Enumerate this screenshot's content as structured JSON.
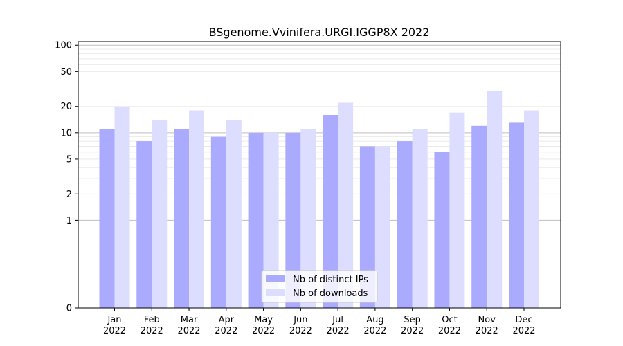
{
  "chart_data": {
    "type": "bar",
    "title": "BSgenome.Vvinifera.URGI.IGGP8X 2022",
    "xlabel": "",
    "ylabel": "",
    "y_scale": "symlog",
    "ylim": [
      0,
      110
    ],
    "yticks": [
      0,
      1,
      2,
      5,
      10,
      20,
      50,
      100
    ],
    "ytick_labels": [
      "0",
      "1",
      "2",
      "5",
      "10",
      "20",
      "50",
      "100"
    ],
    "categories": [
      [
        "Jan",
        "2022"
      ],
      [
        "Feb",
        "2022"
      ],
      [
        "Mar",
        "2022"
      ],
      [
        "Apr",
        "2022"
      ],
      [
        "May",
        "2022"
      ],
      [
        "Jun",
        "2022"
      ],
      [
        "Jul",
        "2022"
      ],
      [
        "Aug",
        "2022"
      ],
      [
        "Sep",
        "2022"
      ],
      [
        "Oct",
        "2022"
      ],
      [
        "Nov",
        "2022"
      ],
      [
        "Dec",
        "2022"
      ]
    ],
    "series": [
      {
        "name": "Nb of distinct IPs",
        "color": "#aaaaff",
        "values": [
          11,
          8,
          11,
          9,
          10,
          10,
          16,
          7,
          8,
          6,
          12,
          13
        ]
      },
      {
        "name": "Nb of downloads",
        "color": "#ddddff",
        "values": [
          20,
          14,
          18,
          14,
          10,
          11,
          22,
          7,
          11,
          17,
          30,
          18
        ]
      }
    ],
    "grid": true,
    "legend_position": "bottom-center"
  }
}
